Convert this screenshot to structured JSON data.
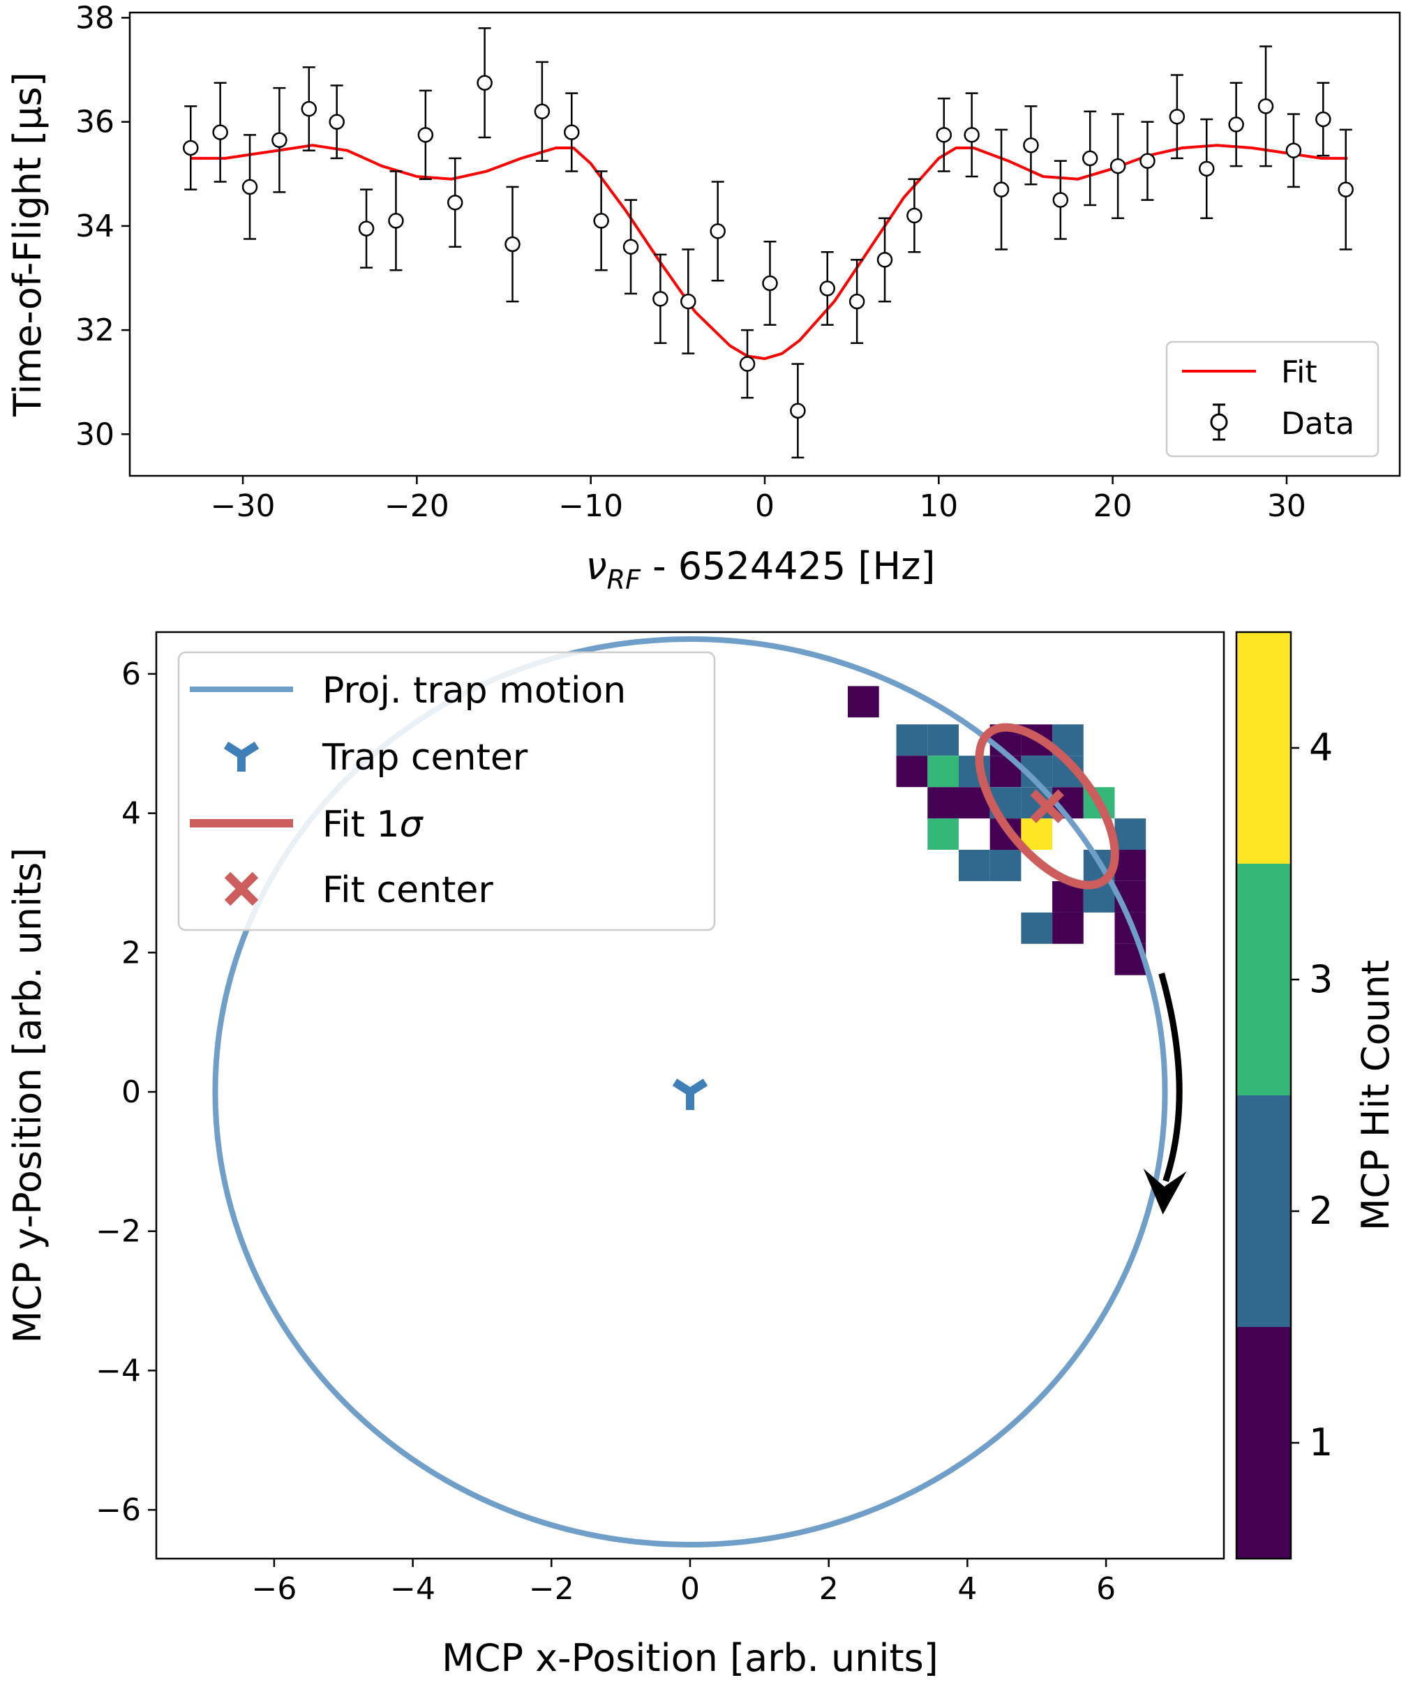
{
  "chart_data": [
    {
      "type": "line",
      "title": "",
      "xlabel_symbol": "ν",
      "xlabel_subscript": "RF",
      "xlabel_rest": " - 6524425 [Hz]",
      "ylabel": "Time-of-Flight [μs]",
      "xlim": [
        -36.5,
        36.5
      ],
      "ylim": [
        29.2,
        38.1
      ],
      "xticks": [
        -30,
        -20,
        -10,
        0,
        10,
        20,
        30
      ],
      "yticks": [
        30,
        32,
        34,
        36,
        38
      ],
      "xtick_labels": [
        "−30",
        "−20",
        "−10",
        "0",
        "10",
        "20",
        "30"
      ],
      "ytick_labels": [
        "30",
        "32",
        "34",
        "36",
        "38"
      ],
      "legend": {
        "placement": "bottom-right",
        "entries": [
          "Fit",
          "Data"
        ]
      },
      "fit": {
        "name": "Fit",
        "color": "#ff0000",
        "x": [
          -33,
          -31,
          -29,
          -27,
          -26,
          -24,
          -22,
          -20,
          -18,
          -16,
          -14,
          -12,
          -11,
          -10,
          -8,
          -6,
          -4,
          -2,
          -1,
          0,
          1,
          2,
          4,
          6,
          8,
          10,
          11,
          12,
          14,
          16,
          18,
          20,
          22,
          24,
          26,
          28,
          30,
          32,
          33.5
        ],
        "y": [
          35.3,
          35.3,
          35.4,
          35.5,
          35.55,
          35.45,
          35.15,
          34.95,
          34.9,
          35.05,
          35.3,
          35.5,
          35.5,
          35.2,
          34.3,
          33.3,
          32.35,
          31.7,
          31.5,
          31.45,
          31.55,
          31.8,
          32.55,
          33.55,
          34.55,
          35.3,
          35.5,
          35.5,
          35.25,
          34.95,
          34.9,
          35.1,
          35.35,
          35.5,
          35.55,
          35.5,
          35.4,
          35.3,
          35.3
        ]
      },
      "data": {
        "name": "Data",
        "color": "#000000",
        "x": [
          -33.0,
          -31.3,
          -29.6,
          -27.9,
          -26.2,
          -24.6,
          -22.9,
          -21.2,
          -19.5,
          -17.8,
          -16.1,
          -14.5,
          -12.8,
          -11.1,
          -9.4,
          -7.7,
          -6.0,
          -4.4,
          -2.7,
          -1.0,
          0.3,
          1.9,
          3.6,
          5.3,
          6.9,
          8.6,
          10.3,
          11.9,
          13.6,
          15.3,
          17.0,
          18.7,
          20.3,
          22.0,
          23.7,
          25.4,
          27.1,
          28.8,
          30.4,
          32.1,
          33.4
        ],
        "y": [
          35.5,
          35.8,
          34.75,
          35.65,
          36.25,
          36.0,
          33.95,
          34.1,
          35.75,
          34.45,
          36.75,
          33.65,
          36.2,
          35.8,
          34.1,
          33.6,
          32.6,
          32.55,
          33.9,
          31.35,
          32.9,
          30.45,
          32.8,
          32.55,
          33.35,
          34.2,
          35.75,
          35.75,
          34.7,
          35.55,
          34.5,
          35.3,
          35.15,
          35.25,
          36.1,
          35.1,
          35.95,
          36.3,
          35.45,
          36.05,
          34.7
        ],
        "yerr": [
          0.8,
          0.95,
          1.0,
          1.0,
          0.8,
          0.7,
          0.75,
          0.95,
          0.85,
          0.85,
          1.05,
          1.1,
          0.95,
          0.75,
          0.95,
          0.9,
          0.85,
          1.0,
          0.95,
          0.65,
          0.8,
          0.9,
          0.7,
          0.8,
          0.8,
          0.7,
          0.7,
          0.8,
          1.15,
          0.75,
          0.75,
          0.9,
          1.0,
          0.75,
          0.8,
          0.95,
          0.8,
          1.15,
          0.7,
          0.7,
          1.15
        ]
      }
    },
    {
      "type": "heatmap",
      "title": "",
      "xlabel": "MCP x-Position [arb. units]",
      "ylabel": "MCP y-Position [arb. units]",
      "xlim": [
        -7.7,
        7.7
      ],
      "ylim": [
        -6.7,
        6.6
      ],
      "xticks": [
        -6,
        -4,
        -2,
        0,
        2,
        4,
        6
      ],
      "yticks": [
        -6,
        -4,
        -2,
        0,
        2,
        4,
        6
      ],
      "xtick_labels": [
        "−6",
        "−4",
        "−2",
        "0",
        "2",
        "4",
        "6"
      ],
      "ytick_labels": [
        "−6",
        "−4",
        "−2",
        "0",
        "2",
        "4",
        "6"
      ],
      "legend": {
        "placement": "top-left",
        "entries": [
          "Proj. trap motion",
          "Trap center",
          "Fit 1",
          "Fit center"
        ],
        "sigma_symbol": "σ"
      },
      "trap_motion": {
        "name": "Proj. trap motion",
        "color": "#6f9fc8",
        "center": [
          0.0,
          0.0
        ],
        "radius_x": 6.85,
        "radius_y": 6.5
      },
      "trap_center": {
        "name": "Trap center",
        "color": "#3f7fb8",
        "x": 0.0,
        "y": 0.0
      },
      "fit_ellipse": {
        "name": "Fit 1σ",
        "color": "#cd5c5c",
        "center": [
          5.15,
          4.1
        ],
        "semi_major": 1.35,
        "semi_minor": 0.65,
        "angle_deg": -52
      },
      "fit_center": {
        "name": "Fit center",
        "color": "#cd5c5c",
        "x": 5.15,
        "y": 4.1
      },
      "rotation_arrow": {
        "from": [
          6.8,
          1.7
        ],
        "to": [
          6.8,
          -1.7
        ]
      },
      "bin_size": 0.45,
      "bins": [
        {
          "x": 2.5,
          "y": 5.6,
          "count": 1
        },
        {
          "x": 3.2,
          "y": 5.05,
          "count": 2
        },
        {
          "x": 3.65,
          "y": 5.05,
          "count": 2
        },
        {
          "x": 4.55,
          "y": 5.05,
          "count": 1
        },
        {
          "x": 5.0,
          "y": 5.05,
          "count": 1
        },
        {
          "x": 5.45,
          "y": 5.05,
          "count": 2
        },
        {
          "x": 3.2,
          "y": 4.6,
          "count": 1
        },
        {
          "x": 3.65,
          "y": 4.6,
          "count": 3
        },
        {
          "x": 4.1,
          "y": 4.6,
          "count": 2
        },
        {
          "x": 4.55,
          "y": 4.6,
          "count": 1
        },
        {
          "x": 5.0,
          "y": 4.6,
          "count": 2
        },
        {
          "x": 5.45,
          "y": 4.6,
          "count": 2
        },
        {
          "x": 3.65,
          "y": 4.15,
          "count": 1
        },
        {
          "x": 4.1,
          "y": 4.15,
          "count": 1
        },
        {
          "x": 4.55,
          "y": 4.15,
          "count": 2
        },
        {
          "x": 5.0,
          "y": 4.15,
          "count": 2
        },
        {
          "x": 5.45,
          "y": 4.15,
          "count": 1
        },
        {
          "x": 5.9,
          "y": 4.15,
          "count": 3
        },
        {
          "x": 3.65,
          "y": 3.7,
          "count": 3
        },
        {
          "x": 4.55,
          "y": 3.7,
          "count": 1
        },
        {
          "x": 5.0,
          "y": 3.7,
          "count": 4
        },
        {
          "x": 6.35,
          "y": 3.7,
          "count": 2
        },
        {
          "x": 4.1,
          "y": 3.25,
          "count": 2
        },
        {
          "x": 4.55,
          "y": 3.25,
          "count": 2
        },
        {
          "x": 5.9,
          "y": 3.25,
          "count": 2
        },
        {
          "x": 6.35,
          "y": 3.25,
          "count": 1
        },
        {
          "x": 5.45,
          "y": 2.8,
          "count": 1
        },
        {
          "x": 5.9,
          "y": 2.8,
          "count": 2
        },
        {
          "x": 6.35,
          "y": 2.8,
          "count": 1
        },
        {
          "x": 5.0,
          "y": 2.35,
          "count": 2
        },
        {
          "x": 5.45,
          "y": 2.35,
          "count": 1
        },
        {
          "x": 6.35,
          "y": 2.35,
          "count": 1
        },
        {
          "x": 6.35,
          "y": 1.9,
          "count": 1
        }
      ],
      "colorbar": {
        "label": "MCP Hit Count",
        "range": [
          0.5,
          4.5
        ],
        "levels": [
          {
            "value": 1,
            "color": "#440154"
          },
          {
            "value": 2,
            "color": "#31688e"
          },
          {
            "value": 3,
            "color": "#35b779"
          },
          {
            "value": 4,
            "color": "#fde725"
          }
        ],
        "tick_labels": [
          "1",
          "2",
          "3",
          "4"
        ]
      }
    }
  ]
}
